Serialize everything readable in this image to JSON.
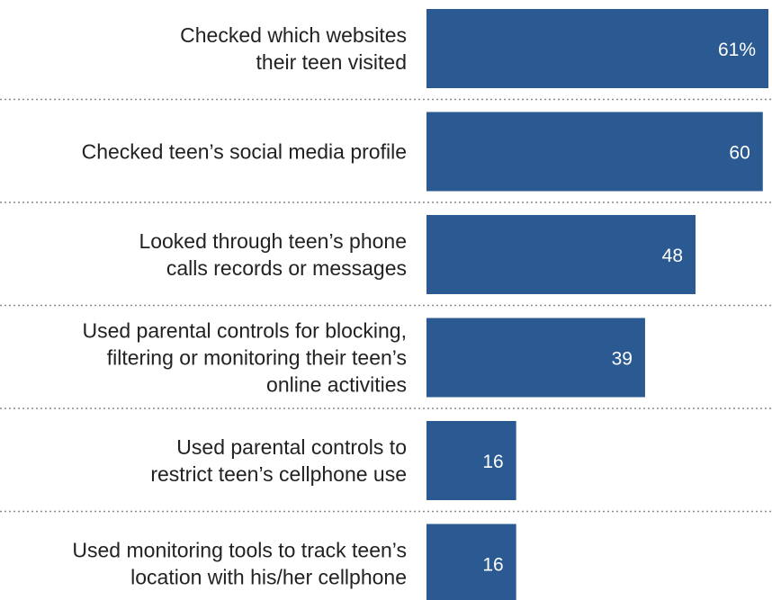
{
  "chart_data": {
    "type": "bar",
    "orientation": "horizontal",
    "categories": [
      "Checked which websites their teen visited",
      "Checked teen’s social media profile",
      "Looked through teen’s phone calls records or messages",
      "Used parental controls for blocking, filtering or monitoring their teen’s online activities",
      "Used parental controls to restrict teen’s cellphone use",
      "Used monitoring tools to track teen’s location with his/her cellphone"
    ],
    "category_lines": [
      [
        "Checked which websites",
        "their teen visited"
      ],
      [
        "Checked teen’s social media profile"
      ],
      [
        "Looked through teen’s phone",
        "calls records or messages"
      ],
      [
        "Used parental controls for blocking,",
        "filtering or monitoring their teen’s",
        "online activities"
      ],
      [
        "Used parental controls to",
        "restrict teen’s cellphone use"
      ],
      [
        "Used monitoring tools to track teen’s",
        "location with his/her cellphone"
      ]
    ],
    "values": [
      61,
      60,
      48,
      39,
      16,
      16
    ],
    "value_labels": [
      "61%",
      "60",
      "48",
      "39",
      "16",
      "16"
    ],
    "bar_color": "#2a5a91",
    "title": "",
    "xlabel": "",
    "ylabel": "",
    "grid": false,
    "legend": "none"
  }
}
